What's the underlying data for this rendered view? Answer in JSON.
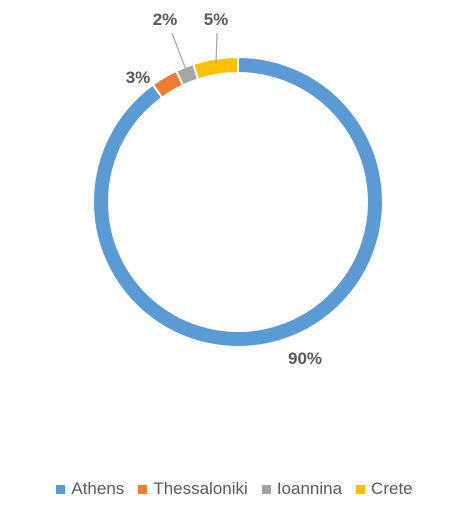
{
  "chart_data": {
    "type": "pie",
    "variant": "doughnut",
    "categories": [
      "Athens",
      "Thessaloniki",
      "Ioannina",
      "Crete"
    ],
    "values": [
      90,
      3,
      2,
      5
    ],
    "labels": [
      "90%",
      "3%",
      "2%",
      "5%"
    ],
    "colors": [
      "#5b9bd5",
      "#ed7d31",
      "#a5a5a5",
      "#ffc000"
    ],
    "legend_position": "bottom"
  }
}
